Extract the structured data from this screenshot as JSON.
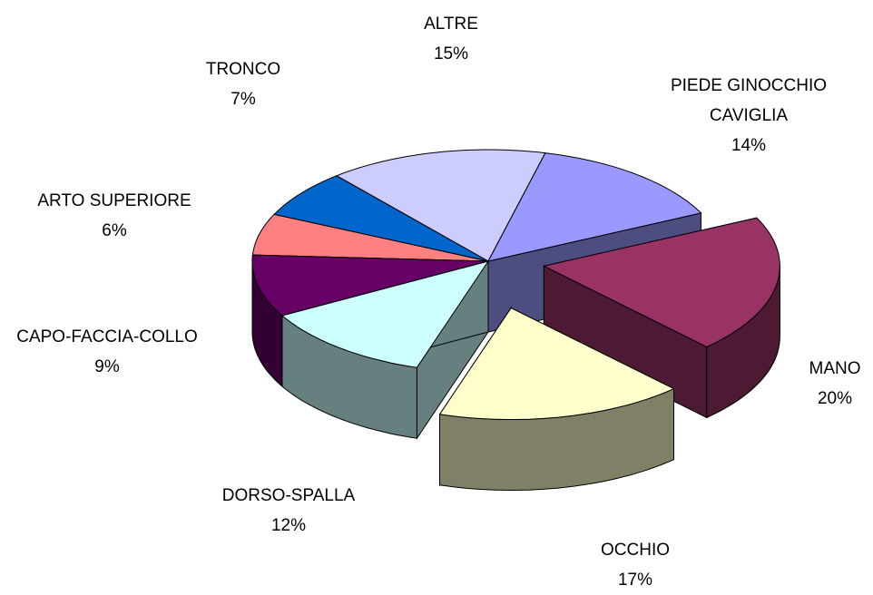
{
  "chart_data": {
    "type": "pie3d",
    "categories": [
      "PIEDE GINOCCHIO CAVIGLIA",
      "MANO",
      "OCCHIO",
      "DORSO-SPALLA",
      "CAPO-FACCIA-COLLO",
      "ARTO SUPERIORE",
      "TRONCO",
      "ALTRE"
    ],
    "values": [
      14,
      20,
      17,
      12,
      9,
      6,
      7,
      15
    ],
    "value_labels": [
      "14%",
      "20%",
      "17%",
      "12%",
      "9%",
      "6%",
      "7%",
      "15%"
    ],
    "colors": [
      "#9999ff",
      "#993366",
      "#ffffcc",
      "#ccffff",
      "#660066",
      "#ff8080",
      "#0066cc",
      "#ccccff"
    ],
    "explode": [
      0,
      0.24,
      0.43,
      0,
      0,
      0,
      0,
      0
    ]
  }
}
